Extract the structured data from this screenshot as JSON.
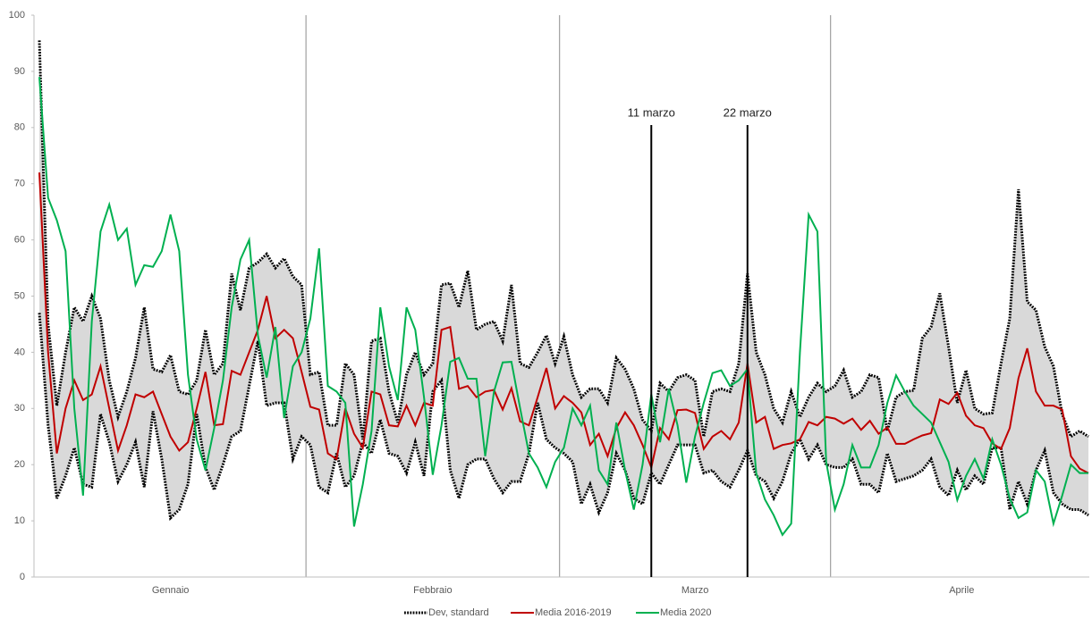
{
  "chart_data": {
    "type": "line",
    "categories": [
      null,
      null,
      null,
      null,
      null,
      null,
      null,
      null,
      null,
      null,
      null,
      null,
      null,
      null,
      null,
      null,
      null,
      null,
      null,
      null,
      null,
      null,
      null,
      null,
      null,
      null,
      null,
      null,
      null,
      null,
      null,
      null,
      null,
      null,
      null,
      null,
      null,
      null,
      null,
      null,
      null,
      null,
      null,
      null,
      null,
      null,
      null,
      null,
      null,
      null,
      null,
      null,
      null,
      null,
      null,
      null,
      null,
      null,
      null,
      null,
      null,
      null,
      null,
      null,
      null,
      null,
      null,
      null,
      null,
      null,
      null,
      null,
      null,
      null,
      null,
      null,
      null,
      null,
      null,
      null,
      null,
      null,
      null,
      null,
      null,
      null,
      null,
      null,
      null,
      null,
      null,
      null,
      null,
      null,
      null,
      null,
      null,
      null,
      null,
      null,
      null,
      null,
      null,
      null,
      null,
      null,
      null,
      null,
      null,
      null,
      null,
      null,
      null,
      null,
      null,
      null,
      null,
      null,
      null,
      null,
      null
    ],
    "month_labels": [
      "Gennaio",
      "Febbraio",
      "Marzo",
      "Aprile"
    ],
    "month_days": [
      31,
      29,
      31,
      30
    ],
    "ylim": [
      0,
      100
    ],
    "yticks": [
      0,
      10,
      20,
      30,
      40,
      50,
      60,
      70,
      80,
      90,
      100
    ],
    "band": {
      "name": "Dev, standard",
      "color": "#000000",
      "fill": "#d9d9d9",
      "upper": [
        95.5,
        45,
        30.5,
        40,
        48,
        45.5,
        50,
        46,
        35,
        28.5,
        33,
        39,
        48,
        37,
        36.5,
        39.5,
        33,
        32.5,
        35,
        44,
        36,
        38,
        54,
        47.5,
        55,
        56,
        57.5,
        55,
        56.7,
        53.5,
        52,
        36,
        36.5,
        27,
        27,
        38,
        36,
        24.5,
        42,
        42.5,
        33,
        27.5,
        36,
        40,
        36,
        38,
        52,
        52.3,
        48,
        54.5,
        44,
        45,
        45.5,
        42,
        52,
        38,
        37.3,
        40,
        43,
        38,
        42.8,
        36,
        32,
        33.5,
        33.5,
        31,
        39,
        37,
        33.5,
        28,
        26,
        34.5,
        33,
        35.5,
        36,
        35,
        25,
        33,
        33.5,
        33,
        38,
        54,
        40,
        36,
        30,
        27.5,
        33,
        28.5,
        32,
        34.5,
        33,
        34,
        36.8,
        32,
        33,
        36,
        35.5,
        26,
        32,
        33,
        33.2,
        42.5,
        44.5,
        50.5,
        41,
        31,
        36.8,
        30,
        29,
        29.2,
        38,
        46,
        69,
        49,
        47.5,
        41,
        37.5,
        29,
        25,
        26,
        25
      ],
      "lower": [
        47,
        27,
        14,
        18,
        23,
        16.5,
        16,
        29,
        24,
        17,
        20,
        24,
        16,
        29.5,
        21,
        10.5,
        12,
        16.5,
        29,
        19.5,
        15.5,
        20,
        25,
        26,
        34,
        42,
        30.5,
        31,
        31,
        21,
        25,
        23.5,
        16,
        15,
        22,
        16,
        18,
        24,
        22,
        28,
        22,
        21.5,
        18.5,
        24,
        18,
        33,
        35,
        19,
        14,
        20,
        21,
        21,
        17.5,
        15,
        17,
        17,
        22,
        31,
        24.5,
        23,
        22,
        20.5,
        13,
        16.5,
        11.5,
        15,
        22,
        19,
        14,
        13,
        18.5,
        16.5,
        20,
        23.5,
        23.5,
        23.5,
        18.5,
        19,
        17,
        16,
        19,
        22.5,
        18,
        17,
        14,
        17,
        22,
        24.5,
        21,
        23.5,
        20,
        19.5,
        19.5,
        21,
        16.5,
        16.5,
        15,
        22,
        17,
        17.5,
        18,
        19,
        21,
        16,
        14.5,
        19,
        15.5,
        18,
        16.5,
        23,
        23,
        12,
        17,
        13,
        19,
        22.5,
        15,
        13,
        12,
        12,
        11
      ]
    },
    "series": [
      {
        "name": "Media 2016-2019",
        "color": "#c00000",
        "values": [
          72,
          40,
          22,
          30,
          35,
          31.5,
          32.5,
          37.5,
          30,
          22.5,
          27,
          32.5,
          32,
          33,
          29,
          25,
          22.5,
          24,
          30,
          36.5,
          27,
          27.2,
          36.7,
          36,
          40,
          44,
          50,
          42.5,
          44,
          42.5,
          36.5,
          30.3,
          29.8,
          22,
          21,
          30,
          25.5,
          23,
          33,
          32.5,
          27,
          26.8,
          30.5,
          27,
          31,
          30.5,
          44,
          44.5,
          33.5,
          34,
          32,
          33,
          33.3,
          29.8,
          33.6,
          27.7,
          27,
          32,
          37.2,
          30,
          32.2,
          31,
          29.3,
          23.5,
          25.5,
          21.5,
          26.5,
          29.3,
          27,
          23.5,
          19.5,
          26.5,
          24.5,
          29.7,
          29.8,
          29.2,
          22.8,
          25,
          26,
          24.5,
          27.5,
          38,
          27.5,
          28.5,
          22.8,
          23.5,
          23.8,
          24.5,
          27.6,
          27,
          28.5,
          28.2,
          27.3,
          28.2,
          26.2,
          27.8,
          25.5,
          26.6,
          23.7,
          23.7,
          24.5,
          25.2,
          25.6,
          31.6,
          30.8,
          32.8,
          28.7,
          27,
          26.5,
          23.8,
          22.8,
          26.5,
          35.4,
          40.7,
          33,
          30.5,
          30.5,
          29.8,
          21.5,
          19.3,
          18.5
        ]
      },
      {
        "name": "Media 2020",
        "color": "#00b050",
        "values": [
          89,
          67.5,
          63.5,
          58,
          30,
          14.5,
          45.5,
          61.5,
          66.3,
          60,
          62,
          52,
          55.5,
          55.2,
          58,
          64.5,
          58,
          36,
          24.5,
          19,
          26.5,
          35,
          48,
          56.5,
          60,
          43,
          35.5,
          44.5,
          28.3,
          37.5,
          40,
          46,
          58.5,
          34,
          33,
          31,
          9,
          16.5,
          26,
          48,
          37.5,
          31.5,
          48,
          44,
          32,
          18.2,
          27,
          38.3,
          39,
          35.3,
          35.3,
          21.5,
          33,
          38.2,
          38.3,
          30,
          22,
          19.5,
          16,
          20.5,
          23,
          30,
          27,
          30.5,
          19,
          16.5,
          27.5,
          19,
          12,
          20,
          32.5,
          24,
          33.5,
          27,
          16.8,
          25,
          31,
          36.3,
          36.8,
          34,
          35,
          37,
          18.5,
          13.8,
          11,
          7.5,
          9.5,
          40,
          64.5,
          61.5,
          20.5,
          12,
          16.5,
          23.5,
          19.5,
          19.5,
          23.5,
          31,
          35.9,
          33,
          30.5,
          29,
          27.5,
          24,
          20.5,
          13.7,
          18,
          21,
          17.5,
          24.5,
          20,
          14,
          10.5,
          11.5,
          19,
          17,
          9.5,
          14.5,
          20,
          18.5,
          18.5
        ]
      }
    ],
    "annotations": [
      {
        "label": "11 marzo",
        "at": 70
      },
      {
        "label": "22 marzo",
        "at": 81
      }
    ]
  }
}
